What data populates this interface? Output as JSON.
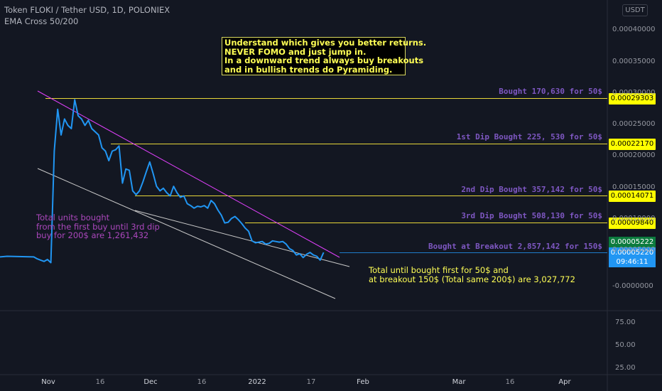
{
  "header": {
    "symbol_line": "Token FLOKI / Tether USD, 1D, POLONIEX",
    "indicator_line": "EMA Cross 50/200",
    "currency_badge": "USDT"
  },
  "note_box": {
    "lines": [
      "Understand which gives you better returns.",
      "NEVER FOMO and just jump in.",
      "In a downward trend always buy breakouts",
      "and in bullish trends do Pyramiding."
    ],
    "border_color": "#d9d95e",
    "text_color": "#ffff55"
  },
  "purple_note": {
    "lines": [
      "Total units bought",
      "from the first buy until 3rd dip",
      "buy for 200$ are  1,261,432"
    ],
    "color": "#ab47bc"
  },
  "yellow_note": {
    "lines": [
      "Total until bought first for 50$ and",
      "at breakout 150$ (Total same 200$) are  3,027,772"
    ],
    "color": "#ffff55"
  },
  "chart_data": {
    "type": "line",
    "title": "Token FLOKI / Tether USD, 1D, POLONIEX",
    "x_axis": {
      "ticks": [
        "Nov",
        "16",
        "Dec",
        "16",
        "2022",
        "17",
        "Feb",
        "Mar",
        "16",
        "Apr"
      ],
      "strong_ticks": [
        "Nov",
        "Dec",
        "2022",
        "Feb",
        "Mar",
        "Apr"
      ]
    },
    "y_axis": {
      "ticks": [
        "0.00040000",
        "0.00035000",
        "0.00030000",
        "0.00025000",
        "0.00020000",
        "0.00015000",
        "0.00010000",
        "0.00005000",
        "-0.0000000"
      ],
      "ylim": [
        -5e-08,
        0.0004
      ],
      "position": "right"
    },
    "series": [
      {
        "color": "#2196f3",
        "x": [
          "Oct 29",
          "Oct 30",
          "Oct 31",
          "Nov 1",
          "Nov 2",
          "Nov 3",
          "Nov 4",
          "Nov 5",
          "Nov 6",
          "Nov 7",
          "Nov 8",
          "Nov 9",
          "Nov 10",
          "Nov 11",
          "Nov 12",
          "Nov 13",
          "Nov 14",
          "Nov 15",
          "Nov 16",
          "Nov 17",
          "Nov 18",
          "Nov 19",
          "Nov 20",
          "Nov 21",
          "Nov 22",
          "Nov 23",
          "Nov 24",
          "Nov 25",
          "Nov 26",
          "Nov 27",
          "Nov 28",
          "Nov 29",
          "Nov 30",
          "Dec 1",
          "Dec 2",
          "Dec 3",
          "Dec 4",
          "Dec 5",
          "Dec 6",
          "Dec 7",
          "Dec 8",
          "Dec 9",
          "Dec 10",
          "Dec 11",
          "Dec 12",
          "Dec 13",
          "Dec 14",
          "Dec 15",
          "Dec 16",
          "Dec 17",
          "Dec 18",
          "Dec 19",
          "Dec 20",
          "Dec 21",
          "Dec 22",
          "Dec 23",
          "Dec 24",
          "Dec 25",
          "Dec 26",
          "Dec 27",
          "Dec 28",
          "Dec 29",
          "Dec 30",
          "Dec 31",
          "Jan 1",
          "Jan 2",
          "Jan 3",
          "Jan 4",
          "Jan 5",
          "Jan 6",
          "Jan 7",
          "Jan 8",
          "Jan 9",
          "Jan 10",
          "Jan 11",
          "Jan 12",
          "Jan 13",
          "Jan 14",
          "Jan 15",
          "Jan 16",
          "Jan 17",
          "Jan 18",
          "Jan 19",
          "Jan 20",
          "Jan 21",
          "Jan 22"
        ],
        "values": [
          4.5e-05,
          4.2e-05,
          4e-05,
          3.8e-05,
          4.1e-05,
          3.6e-05,
          0.00021,
          0.000275,
          0.000235,
          0.00026,
          0.00025,
          0.000245,
          0.00029,
          0.000265,
          0.00026,
          0.00025,
          0.000258,
          0.000245,
          0.00024,
          0.000235,
          0.000215,
          0.00021,
          0.000195,
          0.00021,
          0.000212,
          0.000218,
          0.00016,
          0.000182,
          0.00018,
          0.000148,
          0.000142,
          0.000148,
          0.000162,
          0.000178,
          0.000193,
          0.000175,
          0.000155,
          0.000148,
          0.000152,
          0.000145,
          0.00014,
          0.000155,
          0.000145,
          0.000138,
          0.00014,
          0.000128,
          0.000125,
          0.000121,
          0.000124,
          0.000123,
          0.000125,
          0.000121,
          0.000133,
          0.000128,
          0.000118,
          0.00011,
          9.8e-05,
          9.9e-05,
          0.000105,
          0.000108,
          0.000103,
          9.7e-05,
          9e-05,
          8.5e-05,
          7e-05,
          6.7e-05,
          6.8e-05,
          6.9e-05,
          6.5e-05,
          6.6e-05,
          7e-05,
          6.9e-05,
          6.8e-05,
          6.9e-05,
          6.5e-05,
          5.8e-05,
          5.5e-05,
          4.8e-05,
          5e-05,
          4.4e-05,
          4.9e-05,
          5.2e-05,
          4.8e-05,
          4.6e-05,
          4e-05,
          5.2e-05
        ]
      }
    ],
    "horizontal_levels": [
      {
        "label": "Bought 170,630 for 50$",
        "price": "0.00029303",
        "color": "#ffeb3b"
      },
      {
        "label": "1st Dip Bought 225, 530 for 50$",
        "price": "0.00022170",
        "color": "#ffeb3b"
      },
      {
        "label": "2nd Dip Bought 357,142 for 50$",
        "price": "0.00014071",
        "color": "#ffeb3b"
      },
      {
        "label": "3rd Dip Bought 508,130 for 50$",
        "price": "0.00009840",
        "color": "#ffeb3b"
      },
      {
        "label": "Bought at Breakout 2,857,142 for 150$",
        "price": "0.00005222",
        "color": "#2196f3"
      }
    ],
    "current_price": "0.00005220",
    "countdown": "09:46:11",
    "oscillator_ticks": [
      "75.00",
      "50.00",
      "25.00"
    ],
    "trendline_colors": {
      "resistance": "#e040fb",
      "support": "#c9c9c9"
    }
  }
}
